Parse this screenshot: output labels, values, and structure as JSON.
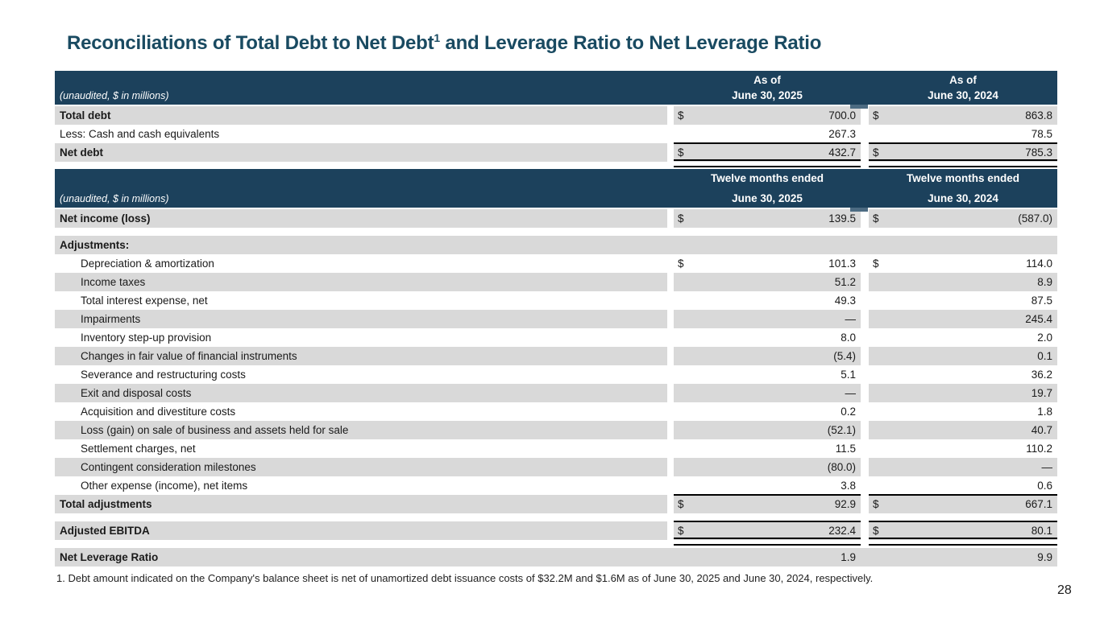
{
  "title": {
    "prefix": "Reconciliations of Total Debt to Net Debt",
    "superscript": "1",
    "suffix": " and Leverage Ratio to Net Leverage Ratio"
  },
  "footnote": "1. Debt amount indicated on the Company's balance sheet is net of unamortized debt issuance costs of $32.2M and $1.6M as of June 30, 2025 and June 30, 2024, respectively.",
  "page_number": "28",
  "colors": {
    "header_bg": "#1c415c",
    "row_shade": "#d9d9d9",
    "title_text": "#194a61",
    "notch": "#4c6b82",
    "line": "#000000"
  },
  "debt_table": {
    "unaudited_label": "(unaudited, $ in millions)",
    "columns": [
      {
        "line1": "As of",
        "line2": "June 30, 2025"
      },
      {
        "line1": "As of",
        "line2": "June 30, 2024"
      }
    ],
    "rows": [
      {
        "label": "Total debt",
        "bold": true,
        "shade": true,
        "d1": "$",
        "v1": "700.0",
        "d2": "$",
        "v2": "863.8"
      },
      {
        "label": "Less: Cash and cash equivalents",
        "v1": "267.3",
        "v2": "78.5"
      },
      {
        "label": "Net debt",
        "bold": true,
        "shade": true,
        "d1": "$",
        "v1": "432.7",
        "d2": "$",
        "v2": "785.3",
        "top_line": true,
        "double_bottom": true
      }
    ]
  },
  "ebitda_table": {
    "unaudited_label": "(unaudited, $ in millions)",
    "columns": [
      {
        "line1": "Twelve months ended",
        "line2": "June 30, 2025"
      },
      {
        "line1": "Twelve months ended",
        "line2": "June 30, 2024"
      }
    ],
    "rows": [
      {
        "label": "Net income (loss)",
        "bold": true,
        "shade": true,
        "d1": "$",
        "v1": "139.5",
        "d2": "$",
        "v2": "(587.0)"
      },
      {
        "spacer": true
      },
      {
        "label": "Adjustments:",
        "bold": true,
        "shade": true,
        "solid": true,
        "v1": "",
        "v2": ""
      },
      {
        "label": "Depreciation & amortization",
        "indent": true,
        "d1": "$",
        "v1": "101.3",
        "d2": "$",
        "v2": "114.0"
      },
      {
        "label": "Income taxes",
        "indent": true,
        "shade": true,
        "v1": "51.2",
        "v2": "8.9"
      },
      {
        "label": "Total interest expense, net",
        "indent": true,
        "v1": "49.3",
        "v2": "87.5"
      },
      {
        "label": "Impairments",
        "indent": true,
        "shade": true,
        "v1": "—",
        "v2": "245.4"
      },
      {
        "label": "Inventory step-up provision",
        "indent": true,
        "v1": "8.0",
        "v2": "2.0"
      },
      {
        "label": "Changes in fair value of financial instruments",
        "indent": true,
        "shade": true,
        "v1": "(5.4)",
        "v2": "0.1"
      },
      {
        "label": "Severance and restructuring costs",
        "indent": true,
        "v1": "5.1",
        "v2": "36.2"
      },
      {
        "label": "Exit and disposal costs",
        "indent": true,
        "shade": true,
        "v1": "—",
        "v2": "19.7"
      },
      {
        "label": "Acquisition and divestiture costs",
        "indent": true,
        "v1": "0.2",
        "v2": "1.8"
      },
      {
        "label": "Loss (gain) on sale of business and assets held for sale",
        "indent": true,
        "shade": true,
        "v1": "(52.1)",
        "v2": "40.7"
      },
      {
        "label": "Settlement charges, net",
        "indent": true,
        "v1": "11.5",
        "v2": "110.2"
      },
      {
        "label": "Contingent consideration milestones",
        "indent": true,
        "shade": true,
        "v1": "(80.0)",
        "v2": "—"
      },
      {
        "label": "Other expense (income), net items",
        "indent": true,
        "v1": "3.8",
        "v2": "0.6"
      },
      {
        "label": "Total adjustments",
        "bold": true,
        "shade": true,
        "d1": "$",
        "v1": "92.9",
        "d2": "$",
        "v2": "667.1",
        "top_line": true
      },
      {
        "spacer": true
      },
      {
        "label": "Adjusted EBITDA",
        "bold": true,
        "shade": true,
        "d1": "$",
        "v1": "232.4",
        "d2": "$",
        "v2": "80.1",
        "top_line": true,
        "double_bottom": true
      },
      {
        "spacer": true
      },
      {
        "label": "Net Leverage Ratio",
        "bold": true,
        "shade": true,
        "solid": true,
        "v1": "1.9",
        "v2": "9.9"
      }
    ]
  }
}
